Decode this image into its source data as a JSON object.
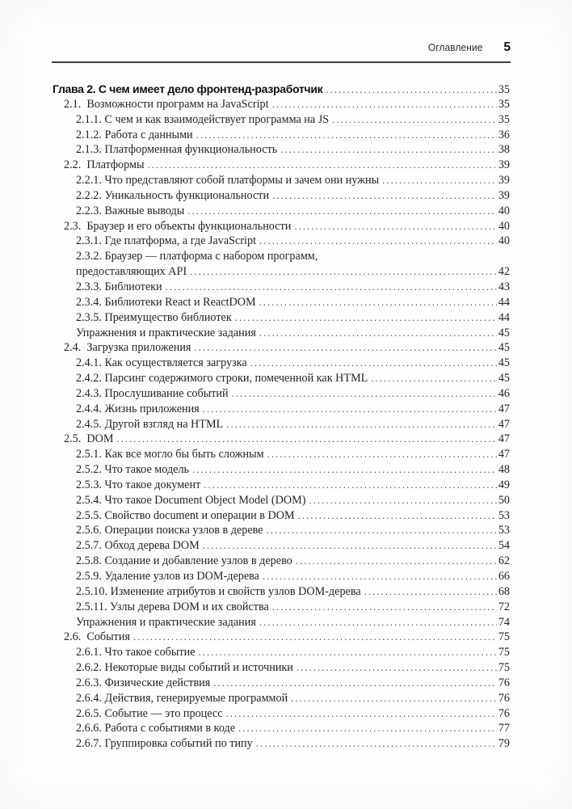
{
  "header": {
    "running_head": "Оглавление",
    "page_number": "5"
  },
  "toc": {
    "entries": [
      {
        "label": "Глава 2. С чем имеет дело фронтенд-разработчик",
        "page": "35",
        "level": 0,
        "style": "chapter"
      },
      {
        "label": "2.1.  Возможности программ на JavaScript",
        "page": "35",
        "level": 1
      },
      {
        "label": "2.1.1. С чем и как взаимодействует программа на JS",
        "page": "35",
        "level": 2
      },
      {
        "label": "2.1.2. Работа с данными",
        "page": "36",
        "level": 2
      },
      {
        "label": "2.1.3. Платформенная функциональность",
        "page": "38",
        "level": 2
      },
      {
        "label": "2.2.  Платформы",
        "page": "39",
        "level": 1
      },
      {
        "label": "2.2.1. Что представляют собой платформы и зачем они нужны",
        "page": "39",
        "level": 2
      },
      {
        "label": "2.2.2. Уникальность функциональности",
        "page": "39",
        "level": 2
      },
      {
        "label": "2.2.3. Важные выводы",
        "page": "40",
        "level": 2
      },
      {
        "label": "2.3.  Браузер и его объекты функциональности",
        "page": "40",
        "level": 1
      },
      {
        "label": "2.3.1. Где платформа, а где JavaScript",
        "page": "40",
        "level": 2
      },
      {
        "label": "2.3.2. Браузер — платформа с набором программ,",
        "page": null,
        "level": 2,
        "leader": false
      },
      {
        "label": "предоставляющих API",
        "page": "42",
        "level": 2
      },
      {
        "label": "2.3.3. Библиотеки",
        "page": "43",
        "level": 2
      },
      {
        "label": "2.3.4. Библиотеки React и ReactDOM",
        "page": "44",
        "level": 2
      },
      {
        "label": "2.3.5. Преимущество библиотек",
        "page": "44",
        "level": 2
      },
      {
        "label": "Упражнения и практические задания",
        "page": "45",
        "level": 2
      },
      {
        "label": "2.4.  Загрузка приложения",
        "page": "45",
        "level": 1
      },
      {
        "label": "2.4.1. Как осуществляется загрузка",
        "page": "45",
        "level": 2
      },
      {
        "label": "2.4.2. Парсинг содержимого строки, помеченной как HTML",
        "page": "45",
        "level": 2
      },
      {
        "label": "2.4.3. Прослушивание событий",
        "page": "46",
        "level": 2
      },
      {
        "label": "2.4.4. Жизнь приложения",
        "page": "47",
        "level": 2
      },
      {
        "label": "2.4.5. Другой взгляд на HTML",
        "page": "47",
        "level": 2
      },
      {
        "label": "2.5.  DOM",
        "page": "47",
        "level": 1
      },
      {
        "label": "2.5.1. Как все могло бы быть сложным",
        "page": "47",
        "level": 2
      },
      {
        "label": "2.5.2. Что такое модель",
        "page": "48",
        "level": 2
      },
      {
        "label": "2.5.3. Что такое документ",
        "page": "49",
        "level": 2
      },
      {
        "label": "2.5.4. Что такое Document Object Model (DOM)",
        "page": "50",
        "level": 2
      },
      {
        "label": "2.5.5. Свойство document и операции в DOM",
        "page": "53",
        "level": 2
      },
      {
        "label": "2.5.6. Операции поиска узлов в дереве",
        "page": "53",
        "level": 2
      },
      {
        "label": "2.5.7. Обход дерева DOM",
        "page": "54",
        "level": 2
      },
      {
        "label": "2.5.8. Создание и добавление узлов в дерево",
        "page": "62",
        "level": 2
      },
      {
        "label": "2.5.9. Удаление узлов из DOM-дерева",
        "page": "66",
        "level": 2
      },
      {
        "label": "2.5.10. Изменение атрибутов и свойств узлов DOM-дерева",
        "page": "68",
        "level": 2
      },
      {
        "label": "2.5.11. Узлы дерева DOM и их свойства",
        "page": "72",
        "level": 2
      },
      {
        "label": "Упражнения и практические задания",
        "page": "74",
        "level": 2
      },
      {
        "label": "2.6.  События",
        "page": "75",
        "level": 1
      },
      {
        "label": "2.6.1. Что такое событие",
        "page": "75",
        "level": 2
      },
      {
        "label": "2.6.2. Некоторые виды событий и источники",
        "page": "75",
        "level": 2
      },
      {
        "label": "2.6.3. Физические действия",
        "page": "76",
        "level": 2
      },
      {
        "label": "2.6.4. Действия, генерируемые программой",
        "page": "76",
        "level": 2
      },
      {
        "label": "2.6.5. Событие — это процесс",
        "page": "76",
        "level": 2
      },
      {
        "label": "2.6.6. Работа с событиями в коде",
        "page": "77",
        "level": 2
      },
      {
        "label": "2.6.7. Группировка событий по типу",
        "page": "79",
        "level": 2
      }
    ]
  }
}
